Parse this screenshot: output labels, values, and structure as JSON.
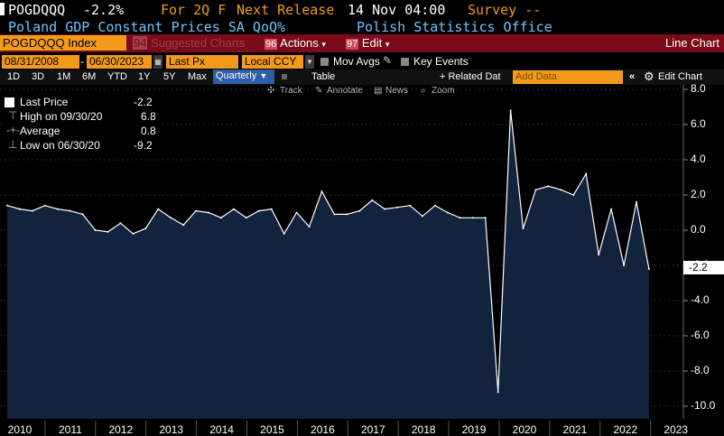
{
  "header": {
    "ticker": "POGDQQQ",
    "value": "-2.2%",
    "period_label": "For 2Q F",
    "next_release_label": "Next Release",
    "next_release_value": "14 Nov 04:00",
    "survey_label": "Survey --",
    "description": "Poland GDP Constant Prices SA QoQ%",
    "source": "Polish Statistics Office"
  },
  "toolbar": {
    "security": "POGDQQQ Index",
    "suggested_num": "94",
    "suggested": "Suggested Charts",
    "actions_num": "96",
    "actions": "Actions",
    "edit_num": "97",
    "edit": "Edit",
    "chart_type": "Line Chart"
  },
  "controls": {
    "start_date": "08/31/2008",
    "end_date": "06/30/2023",
    "field": "Last Px",
    "currency": "Local CCY",
    "mov_avgs": "Mov Avgs",
    "key_events": "Key Events"
  },
  "ranges": {
    "items": [
      "1D",
      "3D",
      "1M",
      "6M",
      "YTD",
      "1Y",
      "5Y",
      "Max"
    ],
    "periodicity": "Quarterly",
    "table": "Table",
    "related": "+ Related Dat",
    "add_data_placeholder": "Add Data",
    "edit_chart": "Edit Chart"
  },
  "tools": {
    "track": "Track",
    "annotate": "Annotate",
    "news": "News",
    "zoom": "Zoom"
  },
  "legend": {
    "last_label": "Last Price",
    "last_value": "-2.2",
    "high_label": "High on 09/30/20",
    "high_value": "6.8",
    "avg_label": "Average",
    "avg_value": "0.8",
    "low_label": "Low on 06/30/20",
    "low_value": "-9.2"
  },
  "last_value_tag": "-2.2",
  "colors": {
    "orange": "#f39a1b",
    "header_blue": "#6cc6ff",
    "red_bar": "#7a0b18",
    "line": "#ffffff",
    "area": "#12233d"
  },
  "chart_data": {
    "type": "area",
    "ylim": [
      -10.8,
      8.3
    ],
    "yticks": [
      "8.0",
      "6.0",
      "4.0",
      "2.0",
      "0.0",
      "-2.0",
      "-4.0",
      "-6.0",
      "-8.0",
      "-10.0"
    ],
    "ytick_values": [
      8,
      6,
      4,
      2,
      0,
      -2,
      -4,
      -6,
      -8,
      -10
    ],
    "xticks": [
      "2010",
      "2011",
      "2012",
      "2013",
      "2014",
      "2015",
      "2016",
      "2017",
      "2018",
      "2019",
      "2020",
      "2021",
      "2022",
      "2023"
    ],
    "series": [
      {
        "values": [
          1.4,
          1.2,
          1.1,
          1.4,
          1.2,
          1.1,
          0.9,
          0.0,
          -0.1,
          0.4,
          -0.2,
          0.1,
          1.2,
          0.7,
          0.3,
          1.1,
          1.0,
          0.7,
          1.2,
          0.7,
          1.1,
          1.2,
          -0.2,
          1.0,
          0.2,
          2.2,
          0.9,
          0.9,
          1.1,
          1.7,
          1.2,
          1.3,
          1.4,
          0.8,
          1.4,
          1.0,
          0.7,
          0.7,
          0.7,
          -9.2,
          6.8,
          0.1,
          2.3,
          2.5,
          2.3,
          2.0,
          3.2,
          -1.4,
          1.2,
          -2.0,
          1.6,
          -2.2
        ]
      }
    ]
  }
}
